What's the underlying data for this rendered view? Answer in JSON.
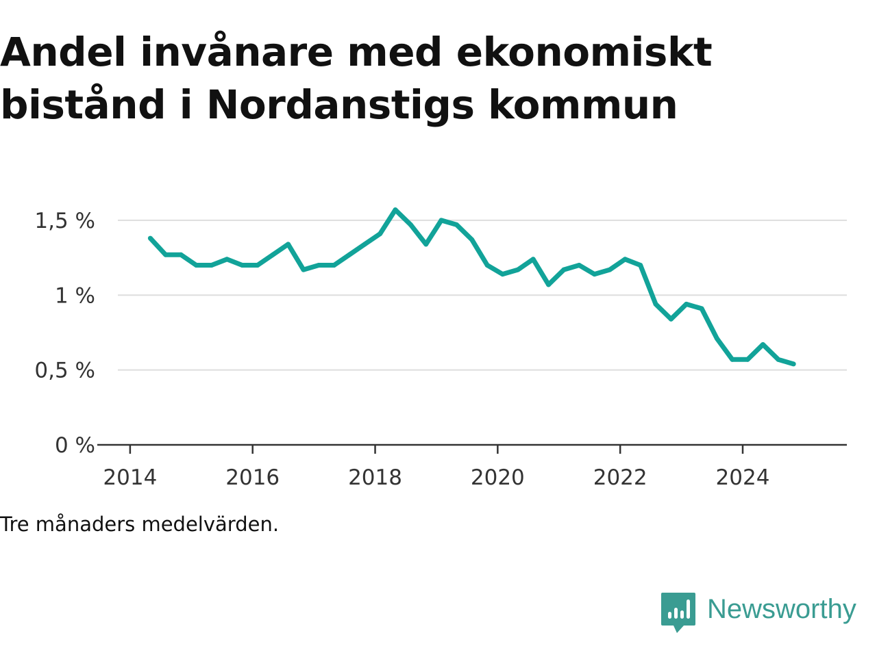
{
  "title": "Andel invånare med ekonomiskt bistånd i Nordanstigs kommun",
  "note": "Tre månaders medelvärden.",
  "brand": {
    "name": "Newsworthy",
    "icon": "newsworthy-logo-icon",
    "color": "#3a9c92"
  },
  "colors": {
    "line": "#12a399",
    "grid": "#dddddd",
    "axis": "#333333"
  },
  "chart_data": {
    "type": "line",
    "title": "Andel invånare med ekonomiskt bistånd i Nordanstigs kommun",
    "xlabel": "",
    "ylabel": "",
    "x_ticks": [
      2014,
      2016,
      2018,
      2020,
      2022,
      2024
    ],
    "x_tick_labels": [
      "2014",
      "2016",
      "2018",
      "2020",
      "2022",
      "2024"
    ],
    "y_ticks": [
      0,
      0.5,
      1,
      1.5
    ],
    "y_tick_labels": [
      "0 %",
      "0,5 %",
      "1 %",
      "1,5 %"
    ],
    "xlim": [
      2013.8,
      2025.7
    ],
    "ylim": [
      0,
      1.6
    ],
    "grid": true,
    "legend": "none",
    "series": [
      {
        "x": [
          2014.33,
          2014.58,
          2014.83,
          2015.08,
          2015.33,
          2015.58,
          2015.83,
          2016.08,
          2016.33,
          2016.58,
          2016.83,
          2017.08,
          2017.33,
          2017.58,
          2017.83,
          2018.08,
          2018.33,
          2018.58,
          2018.83,
          2019.08,
          2019.33,
          2019.58,
          2019.83,
          2020.08,
          2020.33,
          2020.58,
          2020.83,
          2021.08,
          2021.33,
          2021.58,
          2021.83,
          2022.08,
          2022.33,
          2022.58,
          2022.83,
          2023.08,
          2023.33,
          2023.58,
          2023.83,
          2024.08,
          2024.33,
          2024.58,
          2024.83
        ],
        "y": [
          1.38,
          1.27,
          1.27,
          1.2,
          1.2,
          1.24,
          1.2,
          1.2,
          1.27,
          1.34,
          1.17,
          1.2,
          1.2,
          1.27,
          1.34,
          1.41,
          1.57,
          1.47,
          1.34,
          1.5,
          1.47,
          1.37,
          1.2,
          1.14,
          1.17,
          1.24,
          1.07,
          1.17,
          1.2,
          1.14,
          1.17,
          1.24,
          1.2,
          0.94,
          0.84,
          0.94,
          0.91,
          0.71,
          0.57,
          0.57,
          0.67,
          0.57,
          0.54
        ]
      }
    ]
  }
}
